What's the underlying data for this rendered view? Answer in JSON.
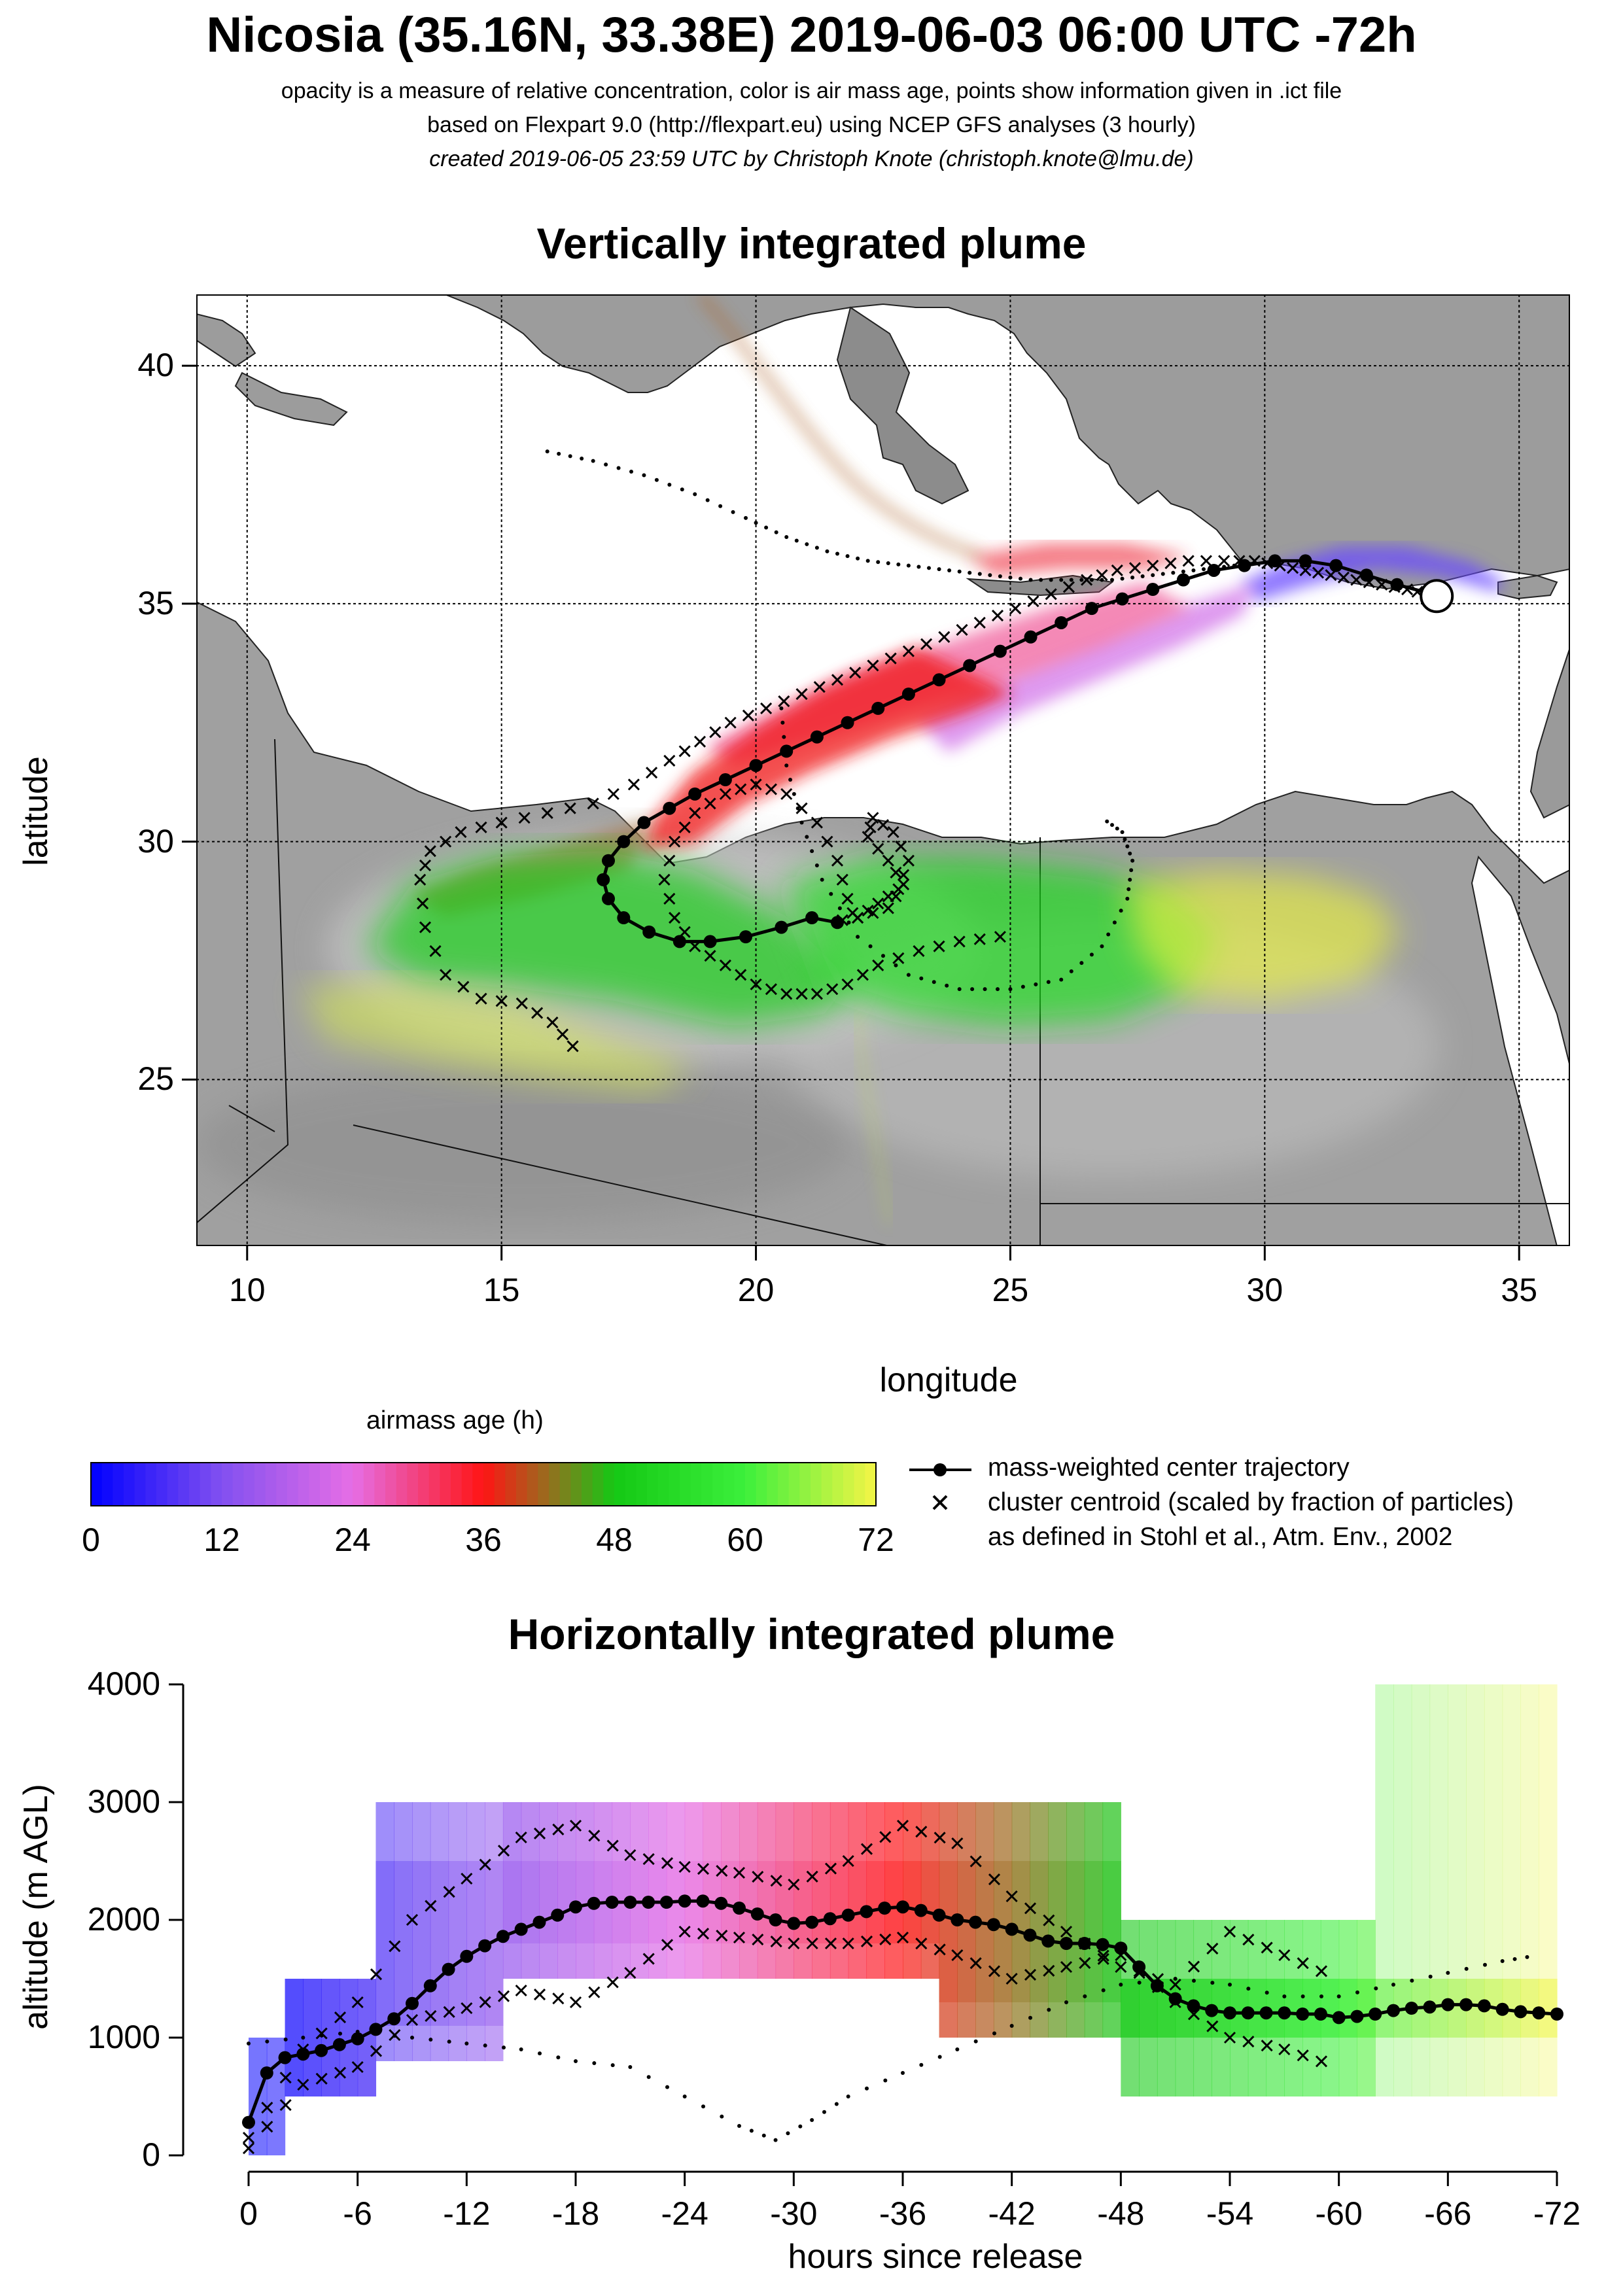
{
  "header": {
    "title": "Nicosia (35.16N, 33.38E) 2019-06-03 06:00 UTC -72h",
    "line1": "opacity is a measure of relative concentration, color is air mass age, points show information given in .ict file",
    "line2": "based on Flexpart 9.0 (http://flexpart.eu) using NCEP GFS analyses (3 hourly)",
    "line3": "created 2019-06-05 23:59 UTC by Christoph Knote (christoph.knote@lmu.de)"
  },
  "map_panel": {
    "title": "Vertically integrated plume",
    "xlabel": "longitude",
    "ylabel": "latitude"
  },
  "colorbar": {
    "title": "airmass age (h)",
    "ticks": [
      "0",
      "12",
      "24",
      "36",
      "48",
      "60",
      "72"
    ]
  },
  "legend": {
    "center_trajectory": "mass-weighted center trajectory",
    "cluster_line1": "cluster centroid (scaled by fraction of particles)",
    "cluster_line2": "as defined in Stohl et al., Atm. Env., 2002"
  },
  "profile_panel": {
    "title": "Horizontally integrated plume",
    "xlabel": "hours since release",
    "ylabel": "altitude (m AGL)"
  },
  "colors": {
    "age_0": "#0000ff",
    "age_24": "#e060e0",
    "age_36": "#ff0000",
    "age_48": "#10c010",
    "age_72": "#ffff40",
    "sea": "#ffffff",
    "land_gray": "#a8a8a8"
  },
  "chart_data": [
    {
      "type": "scatter",
      "name": "map",
      "title": "Vertically integrated plume",
      "xlabel": "longitude",
      "ylabel": "latitude",
      "xlim": [
        9,
        36
      ],
      "ylim": [
        21.5,
        41.5
      ],
      "xticks": [
        10,
        15,
        20,
        25,
        30,
        35
      ],
      "yticks": [
        25,
        30,
        35,
        40
      ],
      "grid": true,
      "release_point": {
        "lon": 33.38,
        "lat": 35.16
      },
      "center_trajectory": {
        "lon": [
          33.3,
          32.6,
          32.0,
          31.4,
          30.8,
          30.2,
          29.6,
          29.0,
          28.4,
          27.8,
          27.2,
          26.6,
          26.0,
          25.4,
          24.8,
          24.2,
          23.6,
          23.0,
          22.4,
          21.8,
          21.2,
          20.6,
          20.0,
          19.4,
          18.8,
          18.3,
          17.8,
          17.4,
          17.1,
          17.0,
          17.1,
          17.4,
          17.9,
          18.5,
          19.1,
          19.8,
          20.5,
          21.1,
          21.6
        ],
        "lat": [
          35.2,
          35.4,
          35.6,
          35.8,
          35.9,
          35.9,
          35.8,
          35.7,
          35.5,
          35.3,
          35.1,
          34.9,
          34.6,
          34.3,
          34.0,
          33.7,
          33.4,
          33.1,
          32.8,
          32.5,
          32.2,
          31.9,
          31.6,
          31.3,
          31.0,
          30.7,
          30.4,
          30.0,
          29.6,
          29.2,
          28.8,
          28.4,
          28.1,
          27.9,
          27.9,
          28.0,
          28.2,
          28.4,
          28.3
        ]
      },
      "cluster_centroids": [
        {
          "lon": [
            16.4,
            16.0,
            15.4,
            14.6,
            13.9,
            13.5,
            13.4,
            13.6,
            14.2,
            15.0,
            15.9,
            16.8,
            17.6,
            18.3,
            18.9,
            19.5,
            20.2,
            20.9,
            21.6,
            22.3,
            23.0,
            23.7,
            24.4,
            25.1,
            25.8,
            26.5,
            27.1,
            27.8,
            28.5,
            29.2,
            29.8,
            30.3,
            30.8,
            31.3,
            31.8,
            32.3,
            32.8,
            33.2
          ],
          "lat": [
            25.7,
            26.2,
            26.6,
            26.7,
            27.2,
            28.2,
            29.2,
            29.8,
            30.2,
            30.4,
            30.6,
            30.8,
            31.2,
            31.7,
            32.1,
            32.5,
            32.8,
            33.1,
            33.4,
            33.7,
            34.0,
            34.3,
            34.6,
            34.9,
            35.2,
            35.5,
            35.7,
            35.8,
            35.9,
            35.9,
            35.9,
            35.8,
            35.7,
            35.6,
            35.5,
            35.4,
            35.3,
            35.2
          ]
        },
        {
          "lon": [
            24.8,
            24.0,
            23.2,
            22.4,
            21.8,
            21.2,
            20.6,
            20.0,
            19.4,
            18.8,
            18.4,
            18.2,
            18.4,
            18.8,
            19.4,
            20.0,
            20.6,
            21.2,
            21.6,
            21.8,
            22.0
          ],
          "lat": [
            28.0,
            27.9,
            27.7,
            27.4,
            27.0,
            26.8,
            26.8,
            27.0,
            27.4,
            27.8,
            28.4,
            29.2,
            30.0,
            30.6,
            31.0,
            31.2,
            31.0,
            30.4,
            29.6,
            28.8,
            28.2
          ]
        },
        {
          "lon": [
            22.0,
            22.4,
            22.8,
            23.0,
            22.7,
            22.3,
            22.2,
            22.6,
            22.9,
            22.6,
            22.0,
            21.4
          ],
          "lat": [
            28.4,
            28.7,
            29.0,
            29.6,
            30.2,
            30.5,
            30.1,
            29.6,
            29.1,
            28.6,
            28.4,
            28.3
          ]
        }
      ],
      "dotted_trajectories": [
        {
          "lon": [
            15.9,
            16.8,
            17.8,
            18.8,
            19.8,
            20.6,
            21.4,
            22.2,
            23.0,
            23.8,
            24.6,
            25.4,
            26.2,
            27.0,
            27.8,
            28.6,
            29.4,
            30.2
          ],
          "lat": [
            38.2,
            38.0,
            37.7,
            37.3,
            36.8,
            36.4,
            36.1,
            35.9,
            35.8,
            35.7,
            35.6,
            35.5,
            35.5,
            35.5,
            35.6,
            35.7,
            35.8,
            35.9
          ]
        },
        {
          "lon": [
            20.5,
            20.6,
            20.9,
            21.3,
            22.0,
            23.0,
            24.0,
            25.0,
            26.0,
            26.8,
            27.3,
            27.4,
            27.2,
            26.8
          ],
          "lat": [
            32.8,
            31.6,
            30.4,
            29.2,
            28.0,
            27.2,
            26.9,
            26.9,
            27.1,
            27.8,
            28.8,
            29.6,
            30.2,
            30.5
          ]
        }
      ]
    },
    {
      "type": "heatmap",
      "name": "profile",
      "title": "Horizontally integrated plume",
      "xlabel": "hours since release",
      "ylabel": "altitude (m AGL)",
      "xlim": [
        0,
        -72
      ],
      "ylim": [
        0,
        4000
      ],
      "xticks": [
        0,
        -6,
        -12,
        -18,
        -24,
        -30,
        -36,
        -42,
        -48,
        -54,
        -60,
        -66,
        -72
      ],
      "yticks": [
        0,
        1000,
        2000,
        3000,
        4000
      ],
      "center_trajectory": {
        "hours": [
          0,
          -1,
          -2,
          -3,
          -4,
          -5,
          -6,
          -7,
          -8,
          -9,
          -10,
          -11,
          -12,
          -13,
          -14,
          -15,
          -16,
          -17,
          -18,
          -19,
          -20,
          -21,
          -22,
          -23,
          -24,
          -25,
          -26,
          -27,
          -28,
          -29,
          -30,
          -31,
          -32,
          -33,
          -34,
          -35,
          -36,
          -37,
          -38,
          -39,
          -40,
          -41,
          -42,
          -43,
          -44,
          -45,
          -46,
          -47,
          -48,
          -49,
          -50,
          -51,
          -52,
          -53,
          -54,
          -55,
          -56,
          -57,
          -58,
          -59,
          -60,
          -61,
          -62,
          -63,
          -64,
          -65,
          -66,
          -67,
          -68,
          -69,
          -70,
          -71,
          -72
        ],
        "altitude_m": [
          280,
          700,
          830,
          860,
          890,
          940,
          990,
          1070,
          1160,
          1290,
          1440,
          1580,
          1690,
          1780,
          1860,
          1920,
          1980,
          2040,
          2110,
          2140,
          2150,
          2150,
          2150,
          2150,
          2160,
          2160,
          2140,
          2100,
          2050,
          2000,
          1970,
          1980,
          2010,
          2040,
          2070,
          2100,
          2110,
          2080,
          2040,
          2000,
          1980,
          1960,
          1920,
          1870,
          1820,
          1800,
          1800,
          1790,
          1760,
          1600,
          1440,
          1330,
          1270,
          1230,
          1210,
          1210,
          1210,
          1210,
          1200,
          1200,
          1170,
          1180,
          1200,
          1230,
          1250,
          1260,
          1280,
          1280,
          1270,
          1240,
          1220,
          1210,
          1200
        ]
      },
      "cluster_bands": [
        {
          "hours": [
            0,
            -3,
            -6,
            -9,
            -12,
            -15,
            -18,
            -21,
            -24,
            -27,
            -30,
            -33,
            -36,
            -39,
            -42,
            -45,
            -48,
            -51,
            -54,
            -57,
            -60
          ],
          "altitude_m": [
            150,
            900,
            1300,
            2000,
            2350,
            2700,
            2800,
            2550,
            2450,
            2400,
            2300,
            2500,
            2800,
            2650,
            2200,
            1900,
            1600,
            1450,
            1900,
            1700,
            1500
          ]
        },
        {
          "hours": [
            0,
            -3,
            -6,
            -9,
            -12,
            -15,
            -18,
            -21,
            -24,
            -27,
            -30,
            -33,
            -36,
            -39,
            -42,
            -45,
            -48,
            -51,
            -54,
            -57,
            -60
          ],
          "altitude_m": [
            60,
            600,
            750,
            1150,
            1250,
            1400,
            1300,
            1550,
            1900,
            1850,
            1800,
            1800,
            1850,
            1700,
            1500,
            1600,
            1700,
            1300,
            1000,
            900,
            750
          ]
        }
      ],
      "dotted_trajectory": {
        "hours": [
          0,
          -3,
          -6,
          -9,
          -12,
          -15,
          -18,
          -21,
          -24,
          -27,
          -29,
          -31,
          -33,
          -36,
          -39,
          -42,
          -45,
          -48,
          -51,
          -54,
          -57,
          -60,
          -63,
          -66,
          -69,
          -71
        ],
        "altitude_m": [
          950,
          1000,
          1050,
          1000,
          950,
          900,
          800,
          750,
          500,
          250,
          130,
          300,
          500,
          700,
          900,
          1100,
          1300,
          1450,
          1500,
          1450,
          1350,
          1350,
          1450,
          1550,
          1650,
          1700
        ]
      }
    }
  ]
}
